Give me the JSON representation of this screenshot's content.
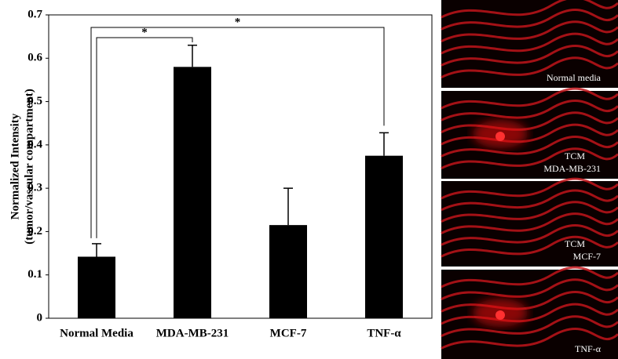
{
  "chart_data": {
    "type": "bar",
    "y_label": [
      "Normalized Intensity",
      "(tumor/vascular compartment)"
    ],
    "categories": [
      "Normal Media",
      "MDA-MB-231",
      "MCF-7",
      "TNF-α"
    ],
    "values": [
      0.142,
      0.58,
      0.215,
      0.375
    ],
    "errors": [
      0.03,
      0.05,
      0.085,
      0.053
    ],
    "color": "#000000",
    "ylim": [
      0,
      0.7
    ],
    "yticks": [
      0,
      0.1,
      0.2,
      0.3,
      0.4,
      0.5,
      0.6,
      0.7
    ],
    "significance": [
      {
        "label": "*",
        "between": [
          0,
          1
        ]
      },
      {
        "label": "*",
        "between": [
          0,
          3
        ]
      }
    ]
  },
  "images": [
    {
      "label": [
        "Normal media"
      ]
    },
    {
      "label": [
        "TCM",
        "MDA-MB-231"
      ]
    },
    {
      "label": [
        "TCM",
        "MCF-7"
      ]
    },
    {
      "label": [
        "TNF-α"
      ]
    }
  ]
}
